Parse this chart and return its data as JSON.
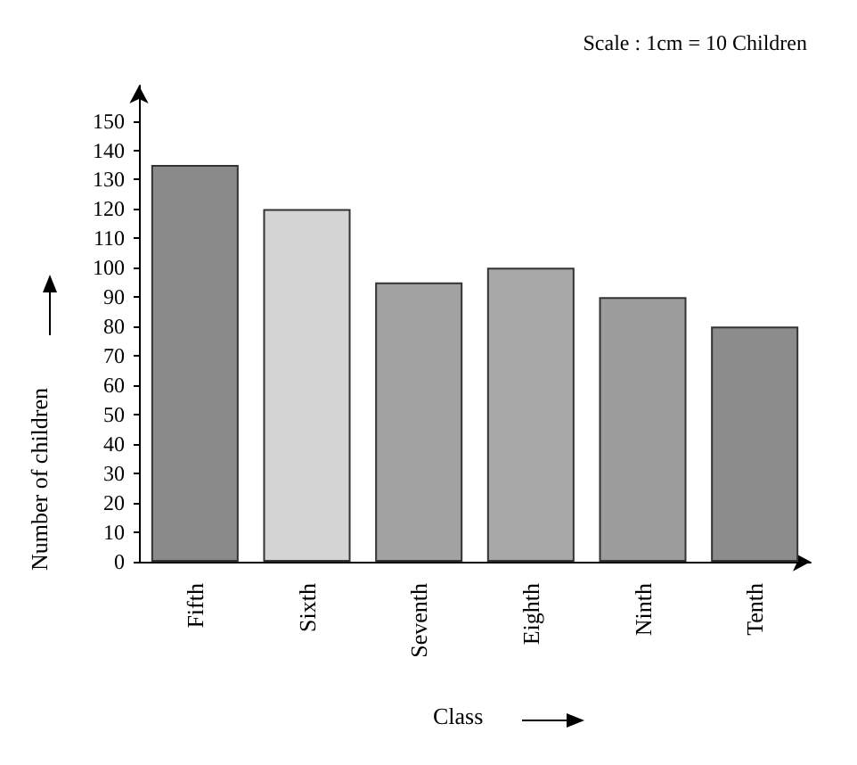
{
  "chart_data": {
    "type": "bar",
    "xlabel": "Class",
    "ylabel": "Number of children",
    "annotations": [
      "Scale : 1cm = 10 Children"
    ],
    "categories": [
      "Fifth",
      "Sixth",
      "Seventh",
      "Eighth",
      "Ninth",
      "Tenth"
    ],
    "values": [
      135,
      120,
      95,
      100,
      90,
      80
    ],
    "colors": [
      "#8a8a8a",
      "#d4d4d4",
      "#a2a2a2",
      "#a8a8a8",
      "#9c9c9c",
      "#8c8c8c"
    ],
    "ylim": [
      0,
      162
    ],
    "yticks": [
      0,
      10,
      20,
      30,
      40,
      50,
      60,
      70,
      80,
      90,
      100,
      110,
      120,
      130,
      140,
      150
    ],
    "grid": false
  }
}
